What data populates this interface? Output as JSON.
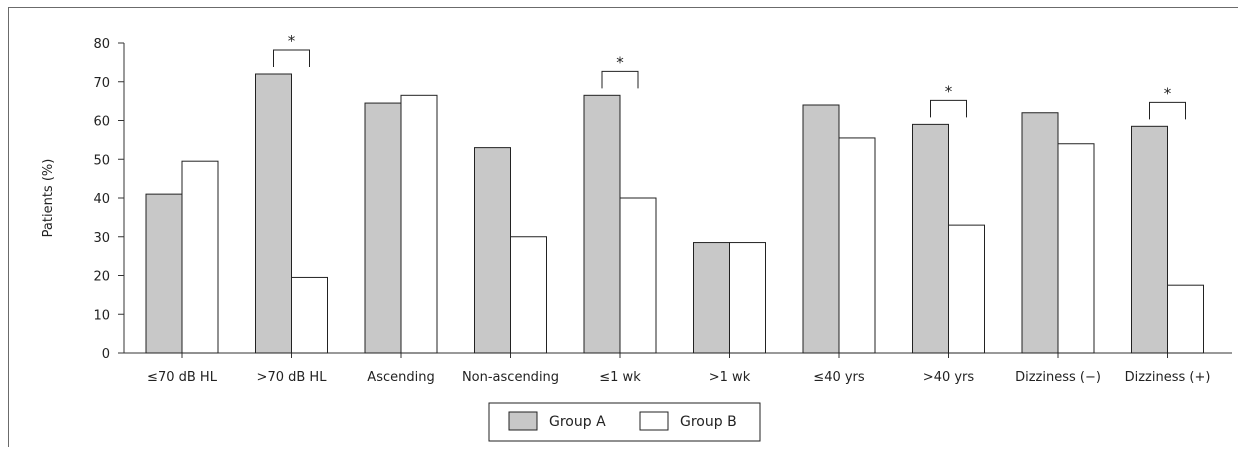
{
  "chart_data": {
    "type": "bar",
    "ylabel": "Patients (%)",
    "ylim": [
      0,
      80
    ],
    "yticks": [
      0,
      10,
      20,
      30,
      40,
      50,
      60,
      70,
      80
    ],
    "categories": [
      "≤70 dB HL",
      ">70 dB HL",
      "Ascending",
      "Non-ascending",
      "≤1 wk",
      ">1 wk",
      "≤40 yrs",
      ">40 yrs",
      "Dizziness (−)",
      "Dizziness (+)"
    ],
    "series": [
      {
        "name": "Group A",
        "color": "#c8c8c8",
        "values": [
          41,
          72,
          64.5,
          53,
          66.5,
          28.5,
          64,
          59,
          62,
          58.5
        ]
      },
      {
        "name": "Group B",
        "color": "#ffffff",
        "values": [
          49.5,
          19.5,
          66.5,
          30,
          40,
          28.5,
          55.5,
          33,
          54,
          17.5
        ]
      }
    ],
    "significance": [
      {
        "category_index": 1,
        "label": "*"
      },
      {
        "category_index": 4,
        "label": "*"
      },
      {
        "category_index": 7,
        "label": "*"
      },
      {
        "category_index": 9,
        "label": "*"
      }
    ],
    "legend_position": "bottom-center",
    "grid": false
  }
}
